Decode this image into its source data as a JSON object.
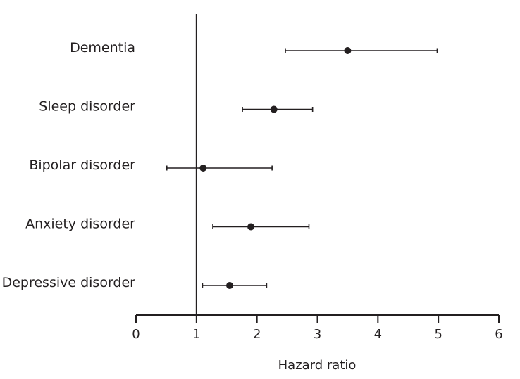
{
  "chart_data": {
    "type": "forest",
    "xlabel": "Hazard ratio",
    "xlim": [
      0,
      6
    ],
    "xticks": [
      0,
      1,
      2,
      3,
      4,
      5,
      6
    ],
    "reference_line": 1,
    "rows": [
      {
        "label": "Dementia",
        "estimate": 3.5,
        "lower": 2.47,
        "upper": 4.98
      },
      {
        "label": "Sleep disorder",
        "estimate": 2.28,
        "lower": 1.76,
        "upper": 2.92
      },
      {
        "label": "Bipolar disorder",
        "estimate": 1.11,
        "lower": 0.51,
        "upper": 2.25
      },
      {
        "label": "Anxiety disorder",
        "estimate": 1.9,
        "lower": 1.27,
        "upper": 2.86
      },
      {
        "label": "Depressive disorder",
        "estimate": 1.55,
        "lower": 1.1,
        "upper": 2.16
      }
    ],
    "colors": {
      "ink": "#231f20"
    }
  }
}
